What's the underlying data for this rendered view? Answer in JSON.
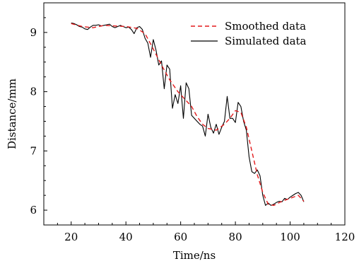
{
  "chart_data": {
    "type": "line",
    "xlabel": "Time/ns",
    "ylabel": "Distance/mm",
    "xlim": [
      10,
      120
    ],
    "ylim": [
      5.75,
      9.5
    ],
    "xticks": [
      20,
      40,
      60,
      80,
      100,
      120
    ],
    "yticks": [
      6,
      7,
      8,
      9
    ],
    "grid": false,
    "legend_position": "top-right",
    "series": [
      {
        "name": "Smoothed data",
        "color": "#e31a1c",
        "style": "dashed",
        "x": [
          20,
          24,
          28,
          32,
          36,
          40,
          44,
          47,
          50,
          53,
          56,
          59,
          62,
          64,
          66,
          68,
          70,
          73,
          76,
          78,
          80,
          82,
          84,
          86,
          88,
          90,
          92,
          94,
          97,
          100,
          103,
          105
        ],
        "y": [
          9.15,
          9.1,
          9.08,
          9.12,
          9.11,
          9.1,
          9.07,
          8.98,
          8.72,
          8.45,
          8.2,
          8.0,
          7.85,
          7.75,
          7.58,
          7.45,
          7.38,
          7.35,
          7.45,
          7.55,
          7.68,
          7.65,
          7.4,
          7.0,
          6.6,
          6.3,
          6.1,
          6.08,
          6.15,
          6.2,
          6.25,
          6.15
        ]
      },
      {
        "name": "Simulated data",
        "color": "#000000",
        "style": "solid",
        "x": [
          20,
          21,
          22,
          23,
          24,
          25,
          26,
          27,
          28,
          29,
          30,
          31,
          32,
          33,
          34,
          35,
          36,
          37,
          38,
          39,
          40,
          41,
          42,
          43,
          44,
          45,
          46,
          47,
          48,
          49,
          50,
          51,
          52,
          53,
          54,
          55,
          56,
          57,
          58,
          59,
          60,
          61,
          62,
          63,
          64,
          65,
          66,
          67,
          68,
          69,
          70,
          71,
          72,
          73,
          74,
          75,
          76,
          77,
          78,
          79,
          80,
          81,
          82,
          83,
          84,
          85,
          86,
          87,
          88,
          89,
          90,
          91,
          92,
          93,
          94,
          95,
          96,
          97,
          98,
          99,
          100,
          101,
          102,
          103,
          104,
          105
        ],
        "y": [
          9.16,
          9.15,
          9.13,
          9.1,
          9.09,
          9.06,
          9.05,
          9.09,
          9.12,
          9.12,
          9.13,
          9.11,
          9.12,
          9.13,
          9.14,
          9.1,
          9.08,
          9.1,
          9.12,
          9.1,
          9.08,
          9.09,
          9.05,
          8.98,
          9.08,
          9.1,
          9.05,
          8.9,
          8.82,
          8.58,
          8.88,
          8.7,
          8.45,
          8.52,
          8.05,
          8.45,
          8.38,
          7.72,
          7.95,
          7.8,
          8.1,
          7.55,
          8.15,
          8.05,
          7.6,
          7.55,
          7.5,
          7.45,
          7.42,
          7.25,
          7.62,
          7.4,
          7.3,
          7.45,
          7.28,
          7.4,
          7.5,
          7.92,
          7.55,
          7.55,
          7.48,
          7.82,
          7.75,
          7.5,
          7.35,
          6.9,
          6.65,
          6.62,
          6.68,
          6.58,
          6.25,
          6.08,
          6.12,
          6.08,
          6.1,
          6.13,
          6.15,
          6.14,
          6.2,
          6.18,
          6.22,
          6.25,
          6.28,
          6.3,
          6.25,
          6.14
        ]
      }
    ]
  }
}
